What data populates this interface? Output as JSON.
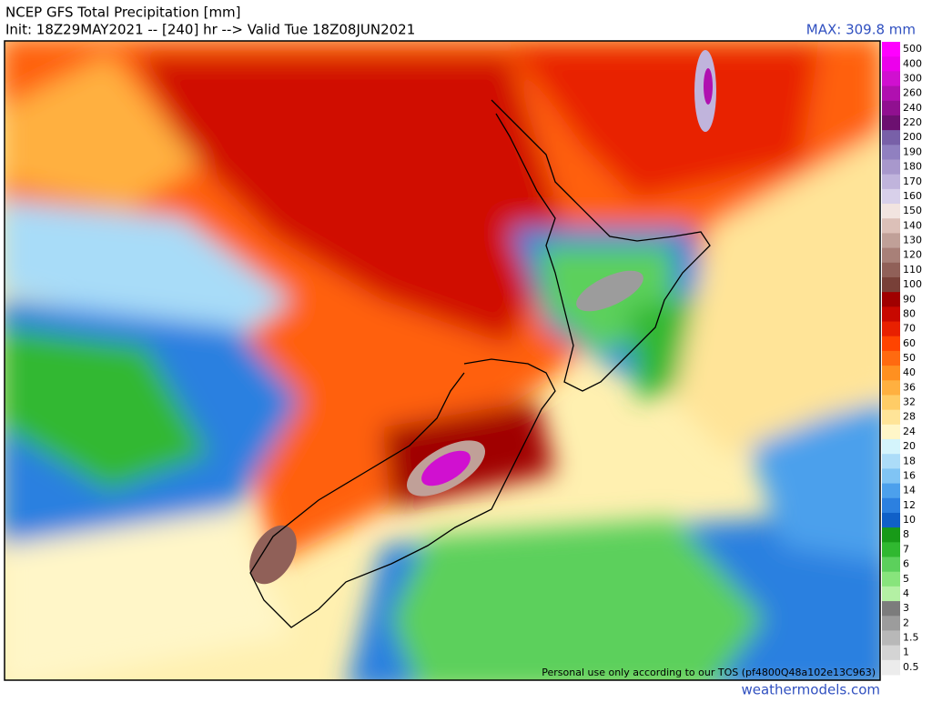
{
  "header": {
    "title": "NCEP GFS Total Precipitation [mm]",
    "init": "Init: 18Z29MAY2021 -- [240] hr --> Valid Tue 18Z08JUN2021",
    "max": "MAX: 309.8 mm"
  },
  "legend": {
    "items": [
      {
        "value": 500,
        "color": "#ff00ff"
      },
      {
        "value": 400,
        "color": "#ec00ec"
      },
      {
        "value": 300,
        "color": "#d010d0"
      },
      {
        "value": 260,
        "color": "#b010b0"
      },
      {
        "value": 240,
        "color": "#901090"
      },
      {
        "value": 220,
        "color": "#6c1070"
      },
      {
        "value": 200,
        "color": "#7860a8"
      },
      {
        "value": 190,
        "color": "#9080c0"
      },
      {
        "value": 180,
        "color": "#a898cc"
      },
      {
        "value": 170,
        "color": "#c0b4dc"
      },
      {
        "value": 160,
        "color": "#d8d0ea"
      },
      {
        "value": 150,
        "color": "#f2e4e0"
      },
      {
        "value": 140,
        "color": "#dcc0b8"
      },
      {
        "value": 130,
        "color": "#c0a098"
      },
      {
        "value": 120,
        "color": "#a88078"
      },
      {
        "value": 110,
        "color": "#906058"
      },
      {
        "value": 100,
        "color": "#784038"
      },
      {
        "value": 90,
        "color": "#a00000"
      },
      {
        "value": 80,
        "color": "#c80800"
      },
      {
        "value": 70,
        "color": "#e82000"
      },
      {
        "value": 60,
        "color": "#ff4400"
      },
      {
        "value": 50,
        "color": "#ff6a10"
      },
      {
        "value": 40,
        "color": "#ff9020"
      },
      {
        "value": 36,
        "color": "#ffb040"
      },
      {
        "value": 32,
        "color": "#ffcc66"
      },
      {
        "value": 28,
        "color": "#ffe498"
      },
      {
        "value": 24,
        "color": "#fff6c8"
      },
      {
        "value": 20,
        "color": "#d4f4fc"
      },
      {
        "value": 18,
        "color": "#acdcf8"
      },
      {
        "value": 16,
        "color": "#80c4f4"
      },
      {
        "value": 14,
        "color": "#4ca0ec"
      },
      {
        "value": 12,
        "color": "#2c80e0"
      },
      {
        "value": 10,
        "color": "#1060c8"
      },
      {
        "value": 8,
        "color": "#189a18"
      },
      {
        "value": 7,
        "color": "#30b830"
      },
      {
        "value": 6,
        "color": "#5cd05c"
      },
      {
        "value": 5,
        "color": "#88e47c"
      },
      {
        "value": 4,
        "color": "#b4f0a4"
      },
      {
        "value": 3,
        "color": "#7c7c7c"
      },
      {
        "value": 2,
        "color": "#9c9c9c"
      },
      {
        "value": 1.5,
        "color": "#b8b8b8"
      },
      {
        "value": 1,
        "color": "#d4d4d4"
      },
      {
        "value": 0.5,
        "color": "#ececec"
      }
    ]
  },
  "footer": {
    "notice": "Personal use only according to our TOS (pf4800Q48a102e13C963)",
    "site": "weathermodels.com"
  }
}
